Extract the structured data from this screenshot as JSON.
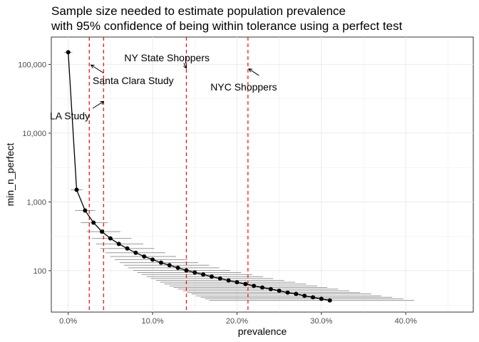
{
  "chart_data": {
    "type": "scatter",
    "title_line1": "Sample size needed to estimate population prevalence",
    "title_line2": "with 95% confidence of being within tolerance using a perfect test",
    "xlabel": "prevalence",
    "ylabel": "min_n_perfect",
    "x_scale": "linear",
    "y_scale": "log10",
    "xlim": [
      -0.02,
      0.48
    ],
    "ylim": [
      25,
      250000
    ],
    "x_ticks": [
      {
        "value": 0.0,
        "label": "0.0%"
      },
      {
        "value": 0.1,
        "label": "10.0%"
      },
      {
        "value": 0.2,
        "label": "20.0%"
      },
      {
        "value": 0.3,
        "label": "30.0%"
      },
      {
        "value": 0.4,
        "label": "40.0%"
      }
    ],
    "y_ticks": [
      {
        "value": 100,
        "label": "100"
      },
      {
        "value": 1000,
        "label": "1,000"
      },
      {
        "value": 10000,
        "label": "10,000"
      },
      {
        "value": 100000,
        "label": "100,000"
      }
    ],
    "grid": true,
    "legend": "none",
    "point_color": "#000000",
    "errorbar_color": "#999999",
    "vline_color": "#ff0000",
    "series": [
      {
        "x": [
          0.0,
          0.01,
          0.02,
          0.03,
          0.04,
          0.05,
          0.06,
          0.07,
          0.08,
          0.09,
          0.1,
          0.11,
          0.12,
          0.13,
          0.14,
          0.15,
          0.16,
          0.17,
          0.18,
          0.19,
          0.2,
          0.21,
          0.22,
          0.23,
          0.24,
          0.25,
          0.26,
          0.27,
          0.28,
          0.29,
          0.3,
          0.31
        ],
        "y": [
          150000,
          1500,
          750,
          500,
          370,
          295,
          245,
          210,
          182,
          161,
          145,
          131,
          120,
          110,
          101,
          94,
          88,
          82,
          77,
          72,
          68,
          64,
          60,
          57,
          54,
          51,
          48,
          46,
          43,
          41,
          39,
          37
        ],
        "xmin": [
          -0.005,
          0.003,
          0.008,
          0.015,
          0.022,
          0.028,
          0.033,
          0.038,
          0.044,
          0.05,
          0.055,
          0.061,
          0.066,
          0.071,
          0.077,
          0.082,
          0.087,
          0.093,
          0.098,
          0.104,
          0.109,
          0.114,
          0.12,
          0.125,
          0.13,
          0.136,
          0.141,
          0.146,
          0.151,
          0.157,
          0.162,
          0.167
        ],
        "xmax": [
          0.005,
          0.017,
          0.032,
          0.047,
          0.062,
          0.075,
          0.089,
          0.102,
          0.115,
          0.128,
          0.141,
          0.154,
          0.167,
          0.179,
          0.192,
          0.205,
          0.218,
          0.231,
          0.243,
          0.256,
          0.269,
          0.282,
          0.295,
          0.307,
          0.32,
          0.333,
          0.346,
          0.359,
          0.371,
          0.384,
          0.397,
          0.41
        ]
      }
    ],
    "vlines": [
      0.025,
      0.042,
      0.14,
      0.213
    ],
    "annotations": [
      {
        "label": "NY State Shoppers",
        "x": 0.117,
        "y": 125000,
        "arrow_from": [
          0.137,
          105000
        ],
        "arrow_to": [
          0.14,
          88000
        ]
      },
      {
        "label": "Santa Clara Study",
        "x": 0.077,
        "y": 58000,
        "arrow_from": [
          0.042,
          75000
        ],
        "arrow_to": [
          0.027,
          98000
        ]
      },
      {
        "label": "NYC Shoppers",
        "x": 0.208,
        "y": 47000,
        "arrow_from": [
          0.226,
          69000
        ],
        "arrow_to": [
          0.214,
          86000
        ]
      },
      {
        "label": "LA Study",
        "x": 0.002,
        "y": 18000,
        "arrow_from": [
          0.029,
          23000
        ],
        "arrow_to": [
          0.042,
          29000
        ]
      }
    ]
  }
}
